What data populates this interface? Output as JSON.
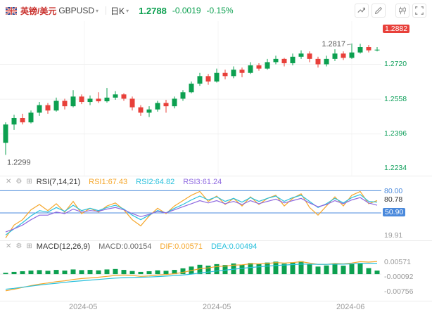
{
  "header": {
    "pair_name_cn": "英镑/美元",
    "symbol": "GBPUSD",
    "interval": "日K",
    "last_price": "1.2788",
    "change": "-0.0019",
    "change_percent": "-0.15%"
  },
  "icons": {
    "caret_glyph": "▾",
    "close_glyph": "✕",
    "settings_glyph": "⚙",
    "expand_glyph": "⊞"
  },
  "main_panel": {
    "axis_labels": [
      "1.2882",
      "1.2720",
      "1.2558",
      "1.2396",
      "1.2234"
    ],
    "high_annotation": "1.2817",
    "low_annotation": "1.2299"
  },
  "rsi_panel": {
    "title": "RSI(7,14,21)",
    "rsi1_label": "RSI1:67.43",
    "rsi2_label": "RSI2:64.82",
    "rsi3_label": "RSI3:61.24",
    "axis_labels": [
      "80.00",
      "80.78",
      "50.90",
      "19.91"
    ]
  },
  "macd_panel": {
    "title": "MACD(12,26,9)",
    "macd_label": "MACD:0.00154",
    "dif_label": "DIF:0.00571",
    "dea_label": "DEA:0.00494",
    "axis_labels": [
      "0.00571",
      "-0.00092",
      "-0.00756"
    ]
  },
  "x_axis": {
    "labels": [
      "2024-05",
      "2024-05",
      "2024-06"
    ]
  },
  "colors": {
    "up": "#0ca050",
    "down": "#e8403a",
    "orange": "#f5a62a",
    "cyan": "#29c0dc",
    "purple": "#8f6ae0",
    "blue": "#4a89dc",
    "price_green": "#0ca050",
    "tag_red": "#e8403a",
    "axis_green": "#11a05c"
  },
  "chart_data": [
    {
      "type": "candlestick",
      "title": "GBPUSD 日K",
      "ylim": [
        1.2202,
        1.2921
      ],
      "x_offset": 8,
      "x_step": 12,
      "h_gridlines": [
        1.272,
        1.2558,
        1.2396
      ],
      "v_gridlines": [
        120,
        310,
        500
      ],
      "high_index": 41,
      "low_index": 0,
      "high_label": "1.2817",
      "low_label": "1.2299",
      "ohlc": [
        [
          1.2355,
          1.245,
          1.2299,
          1.244
        ],
        [
          1.244,
          1.2485,
          1.2415,
          1.247
        ],
        [
          1.247,
          1.249,
          1.244,
          1.245
        ],
        [
          1.245,
          1.2505,
          1.2445,
          1.2495
        ],
        [
          1.2495,
          1.2545,
          1.248,
          1.253
        ],
        [
          1.253,
          1.254,
          1.249,
          1.2505
        ],
        [
          1.2505,
          1.2565,
          1.25,
          1.255
        ],
        [
          1.255,
          1.256,
          1.251,
          1.2525
        ],
        [
          1.2525,
          1.26,
          1.252,
          1.257
        ],
        [
          1.257,
          1.258,
          1.2535,
          1.2545
        ],
        [
          1.2545,
          1.2575,
          1.253,
          1.256
        ],
        [
          1.256,
          1.259,
          1.254,
          1.2548
        ],
        [
          1.2548,
          1.261,
          1.2542,
          1.2565
        ],
        [
          1.2565,
          1.2595,
          1.2555,
          1.258
        ],
        [
          1.258,
          1.2585,
          1.255,
          1.256
        ],
        [
          1.256,
          1.257,
          1.2505,
          1.252
        ],
        [
          1.252,
          1.253,
          1.248,
          1.2495
        ],
        [
          1.2495,
          1.2525,
          1.2475,
          1.251
        ],
        [
          1.251,
          1.255,
          1.25,
          1.254
        ],
        [
          1.254,
          1.2555,
          1.2495,
          1.2525
        ],
        [
          1.2525,
          1.257,
          1.2515,
          1.256
        ],
        [
          1.256,
          1.26,
          1.255,
          1.259
        ],
        [
          1.259,
          1.264,
          1.2585,
          1.263
        ],
        [
          1.263,
          1.268,
          1.262,
          1.2665
        ],
        [
          1.2665,
          1.2675,
          1.2625,
          1.264
        ],
        [
          1.264,
          1.27,
          1.2635,
          1.268
        ],
        [
          1.268,
          1.2695,
          1.265,
          1.2665
        ],
        [
          1.2665,
          1.271,
          1.2655,
          1.2695
        ],
        [
          1.2695,
          1.2705,
          1.266,
          1.268
        ],
        [
          1.268,
          1.273,
          1.2675,
          1.2715
        ],
        [
          1.2715,
          1.2725,
          1.269,
          1.27
        ],
        [
          1.27,
          1.2745,
          1.2695,
          1.273
        ],
        [
          1.273,
          1.276,
          1.272,
          1.2745
        ],
        [
          1.2745,
          1.275,
          1.271,
          1.2725
        ],
        [
          1.2725,
          1.277,
          1.2715,
          1.2755
        ],
        [
          1.2755,
          1.2785,
          1.2745,
          1.277
        ],
        [
          1.277,
          1.278,
          1.273,
          1.2745
        ],
        [
          1.2745,
          1.2755,
          1.2705,
          1.272
        ],
        [
          1.272,
          1.276,
          1.271,
          1.2745
        ],
        [
          1.2745,
          1.279,
          1.2735,
          1.277
        ],
        [
          1.277,
          1.278,
          1.274,
          1.275
        ],
        [
          1.275,
          1.2817,
          1.2745,
          1.2775
        ],
        [
          1.2775,
          1.2815,
          1.277,
          1.28
        ],
        [
          1.28,
          1.281,
          1.2775,
          1.2785
        ],
        [
          1.2785,
          1.28,
          1.278,
          1.2788
        ]
      ]
    },
    {
      "type": "line",
      "title": "RSI(7,14,21)",
      "ylim": [
        15,
        85
      ],
      "x_offset": 8,
      "x_step": 12,
      "hlines": [
        80,
        50.9
      ],
      "series": [
        {
          "name": "RSI1",
          "color": "#f5a62a",
          "values": [
            18,
            35,
            42,
            55,
            62,
            54,
            63,
            52,
            66,
            50,
            57,
            52,
            60,
            64,
            55,
            42,
            34,
            47,
            57,
            50,
            60,
            67,
            74,
            79,
            66,
            73,
            62,
            70,
            60,
            72,
            62,
            70,
            74,
            60,
            70,
            76,
            58,
            48,
            60,
            72,
            60,
            74,
            79,
            63,
            67
          ]
        },
        {
          "name": "RSI2",
          "color": "#29c0dc",
          "values": [
            22,
            30,
            38,
            47,
            54,
            52,
            58,
            53,
            61,
            54,
            57,
            54,
            58,
            61,
            56,
            48,
            42,
            48,
            54,
            51,
            57,
            62,
            68,
            73,
            68,
            72,
            66,
            70,
            65,
            71,
            66,
            70,
            73,
            66,
            71,
            74,
            66,
            58,
            63,
            70,
            64,
            71,
            75,
            66,
            65
          ]
        },
        {
          "name": "RSI3",
          "color": "#8f6ae0",
          "values": [
            26,
            30,
            35,
            42,
            48,
            48,
            52,
            50,
            56,
            52,
            54,
            53,
            56,
            58,
            55,
            50,
            46,
            49,
            53,
            51,
            55,
            59,
            63,
            67,
            64,
            67,
            63,
            66,
            62,
            67,
            63,
            66,
            69,
            64,
            67,
            70,
            64,
            59,
            62,
            67,
            63,
            68,
            71,
            64,
            61
          ]
        }
      ]
    },
    {
      "type": "macd",
      "title": "MACD(12,26,9)",
      "ylim": [
        -0.01199,
        0.01015
      ],
      "x_offset": 8,
      "x_step": 12,
      "histogram": {
        "color": "#0ca050",
        "values": [
          0.0006,
          0.001,
          0.0013,
          0.0016,
          0.0018,
          0.0015,
          0.0019,
          0.0016,
          0.0021,
          0.0018,
          0.0019,
          0.0017,
          0.0021,
          0.0023,
          0.0019,
          0.0014,
          0.001,
          0.0013,
          0.0017,
          0.0015,
          0.0019,
          0.0026,
          0.0034,
          0.0042,
          0.0038,
          0.0045,
          0.0041,
          0.0048,
          0.0043,
          0.005,
          0.0045,
          0.0052,
          0.0056,
          0.0047,
          0.0053,
          0.0058,
          0.0045,
          0.0034,
          0.0039,
          0.0047,
          0.0038,
          0.0045,
          0.005,
          0.0027,
          0.0016
        ]
      },
      "series": [
        {
          "name": "DIF",
          "color": "#f5a62a",
          "values": [
            -0.0075,
            -0.0068,
            -0.006,
            -0.0052,
            -0.0045,
            -0.004,
            -0.0034,
            -0.003,
            -0.0024,
            -0.002,
            -0.0017,
            -0.0014,
            -0.001,
            -0.0006,
            -0.0004,
            -0.0006,
            -0.001,
            -0.0008,
            -0.0004,
            -0.0002,
            0.0002,
            0.0008,
            0.0016,
            0.0024,
            0.0028,
            0.0034,
            0.0036,
            0.004,
            0.0042,
            0.0046,
            0.0046,
            0.0048,
            0.0052,
            0.005,
            0.0052,
            0.0056,
            0.005,
            0.0044,
            0.0044,
            0.0048,
            0.0046,
            0.005,
            0.0056,
            0.0054,
            0.0057
          ]
        },
        {
          "name": "DEA",
          "color": "#29c0dc",
          "values": [
            -0.0068,
            -0.0064,
            -0.0059,
            -0.0054,
            -0.0049,
            -0.0045,
            -0.0041,
            -0.0037,
            -0.0033,
            -0.003,
            -0.0027,
            -0.0024,
            -0.0021,
            -0.0018,
            -0.0016,
            -0.0015,
            -0.0014,
            -0.0013,
            -0.0011,
            -0.0009,
            -0.0007,
            -0.0004,
            0.0,
            0.0005,
            0.0009,
            0.0014,
            0.0018,
            0.0022,
            0.0026,
            0.003,
            0.0033,
            0.0036,
            0.0039,
            0.0041,
            0.0043,
            0.0045,
            0.0045,
            0.0044,
            0.0044,
            0.0045,
            0.0045,
            0.0046,
            0.0048,
            0.0049,
            0.0049
          ]
        }
      ]
    }
  ]
}
